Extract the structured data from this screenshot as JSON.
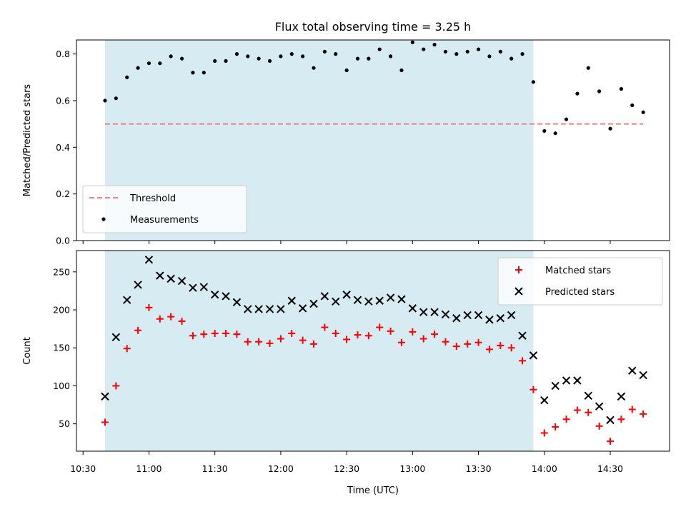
{
  "chart_data": {
    "title": "Flux total observing time = 3.25 h",
    "xlabel": "Time (UTC)",
    "x_tick_labels": [
      "10:30",
      "11:00",
      "11:30",
      "12:00",
      "12:30",
      "13:00",
      "13:30",
      "14:00",
      "14:30"
    ],
    "shaded_band": {
      "start": "10:40",
      "end": "13:55",
      "color": "#add8e6"
    },
    "panels": [
      {
        "type": "scatter",
        "ylabel": "Matched/Predicted stars",
        "ylim": [
          0,
          0.86
        ],
        "y_ticks": [
          0.0,
          0.2,
          0.4,
          0.6,
          0.8
        ],
        "y_tick_labels": [
          "0.0",
          "0.2",
          "0.4",
          "0.6",
          "0.8"
        ],
        "legend_position": "lower-left",
        "threshold": {
          "name": "Threshold",
          "value": 0.5,
          "x_start": "10:40",
          "x_end": "14:45",
          "color": "#f08080",
          "style": "dashed"
        },
        "series": [
          {
            "name": "Measurements",
            "marker": "dot",
            "color": "#000000",
            "x": [
              "10:40",
              "10:45",
              "10:50",
              "10:55",
              "11:00",
              "11:05",
              "11:10",
              "11:15",
              "11:20",
              "11:25",
              "11:30",
              "11:35",
              "11:40",
              "11:45",
              "11:50",
              "11:55",
              "12:00",
              "12:05",
              "12:10",
              "12:15",
              "12:20",
              "12:25",
              "12:30",
              "12:35",
              "12:40",
              "12:45",
              "12:50",
              "12:55",
              "13:00",
              "13:05",
              "13:10",
              "13:15",
              "13:20",
              "13:25",
              "13:30",
              "13:35",
              "13:40",
              "13:45",
              "13:50",
              "13:55",
              "14:00",
              "14:05",
              "14:10",
              "14:15",
              "14:20",
              "14:25",
              "14:30",
              "14:35",
              "14:40",
              "14:45"
            ],
            "y": [
              0.6,
              0.61,
              0.7,
              0.74,
              0.76,
              0.76,
              0.79,
              0.78,
              0.72,
              0.72,
              0.77,
              0.77,
              0.8,
              0.79,
              0.78,
              0.77,
              0.79,
              0.8,
              0.79,
              0.74,
              0.81,
              0.8,
              0.73,
              0.78,
              0.78,
              0.82,
              0.79,
              0.73,
              0.85,
              0.82,
              0.84,
              0.81,
              0.8,
              0.81,
              0.82,
              0.79,
              0.81,
              0.78,
              0.8,
              0.68,
              0.47,
              0.46,
              0.52,
              0.63,
              0.74,
              0.64,
              0.48,
              0.65,
              0.58,
              0.55
            ]
          }
        ]
      },
      {
        "type": "scatter",
        "ylabel": "Count",
        "ylim": [
          14,
          278
        ],
        "y_ticks": [
          50,
          100,
          150,
          200,
          250
        ],
        "y_tick_labels": [
          "50",
          "100",
          "150",
          "200",
          "250"
        ],
        "legend_position": "top-right",
        "series": [
          {
            "name": "Matched stars",
            "marker": "plus",
            "color": "#ff0000",
            "x": [
              "10:40",
              "10:45",
              "10:50",
              "10:55",
              "11:00",
              "11:05",
              "11:10",
              "11:15",
              "11:20",
              "11:25",
              "11:30",
              "11:35",
              "11:40",
              "11:45",
              "11:50",
              "11:55",
              "12:00",
              "12:05",
              "12:10",
              "12:15",
              "12:20",
              "12:25",
              "12:30",
              "12:35",
              "12:40",
              "12:45",
              "12:50",
              "12:55",
              "13:00",
              "13:05",
              "13:10",
              "13:15",
              "13:20",
              "13:25",
              "13:30",
              "13:35",
              "13:40",
              "13:45",
              "13:50",
              "13:55",
              "14:00",
              "14:05",
              "14:10",
              "14:15",
              "14:20",
              "14:25",
              "14:30",
              "14:35",
              "14:40",
              "14:45"
            ],
            "y": [
              52,
              100,
              149,
              173,
              203,
              188,
              191,
              185,
              166,
              168,
              169,
              169,
              168,
              158,
              158,
              156,
              162,
              169,
              160,
              155,
              177,
              169,
              161,
              167,
              166,
              177,
              172,
              157,
              171,
              162,
              168,
              158,
              152,
              155,
              157,
              148,
              153,
              150,
              133,
              95,
              38,
              46,
              56,
              68,
              65,
              47,
              27,
              56,
              69,
              63
            ]
          },
          {
            "name": "Predicted stars",
            "marker": "x",
            "color": "#000000",
            "x": [
              "10:40",
              "10:45",
              "10:50",
              "10:55",
              "11:00",
              "11:05",
              "11:10",
              "11:15",
              "11:20",
              "11:25",
              "11:30",
              "11:35",
              "11:40",
              "11:45",
              "11:50",
              "11:55",
              "12:00",
              "12:05",
              "12:10",
              "12:15",
              "12:20",
              "12:25",
              "12:30",
              "12:35",
              "12:40",
              "12:45",
              "12:50",
              "12:55",
              "13:00",
              "13:05",
              "13:10",
              "13:15",
              "13:20",
              "13:25",
              "13:30",
              "13:35",
              "13:40",
              "13:45",
              "13:50",
              "13:55",
              "14:00",
              "14:05",
              "14:10",
              "14:15",
              "14:20",
              "14:25",
              "14:30",
              "14:35",
              "14:40",
              "14:45"
            ],
            "y": [
              86,
              164,
              213,
              233,
              266,
              245,
              241,
              238,
              229,
              230,
              220,
              218,
              210,
              201,
              201,
              201,
              201,
              212,
              202,
              208,
              218,
              211,
              220,
              213,
              211,
              212,
              216,
              214,
              202,
              197,
              197,
              194,
              189,
              193,
              193,
              187,
              189,
              193,
              166,
              140,
              81,
              100,
              107,
              107,
              87,
              73,
              55,
              86,
              120,
              114
            ]
          }
        ]
      }
    ]
  }
}
